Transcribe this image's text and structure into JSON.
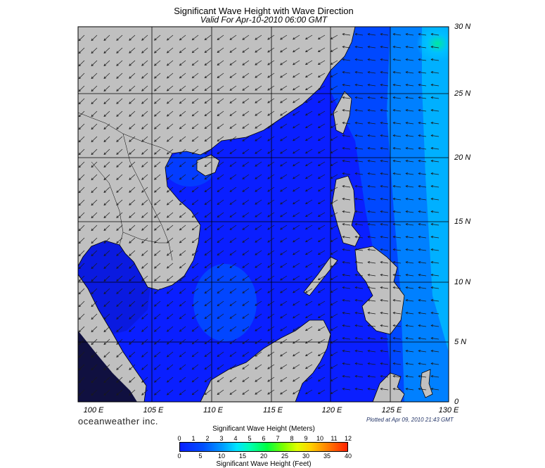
{
  "title": "Significant Wave Height with Wave Direction",
  "subtitle": "Valid For Apr-10-2010 06:00 GMT",
  "lat_labels": [
    "30 N",
    "25 N",
    "20 N",
    "15 N",
    "10 N",
    "5 N",
    "0"
  ],
  "lon_labels": [
    "100 E",
    "105 E",
    "110 E",
    "115 E",
    "120 E",
    "125 E",
    "130 E"
  ],
  "branding": "oceanweather inc.",
  "plotted_note": "Plotted at Apr 09, 2010 21:43 GMT",
  "legend": {
    "meters_title": "Significant Wave Height (Meters)",
    "meters_ticks": [
      "0",
      "1",
      "2",
      "3",
      "4",
      "5",
      "6",
      "7",
      "8",
      "9",
      "10",
      "11",
      "12"
    ],
    "feet_title": "Significant Wave Height (Feet)",
    "feet_ticks": [
      "0",
      "5",
      "10",
      "15",
      "20",
      "25",
      "30",
      "35",
      "40"
    ]
  },
  "colors": {
    "land": "#c0c0c0",
    "sea_low": "#0a1fff",
    "sea_mid": "#0050ff",
    "sea_high": "#00c8ff",
    "arrow": "#1a1a1a"
  }
}
